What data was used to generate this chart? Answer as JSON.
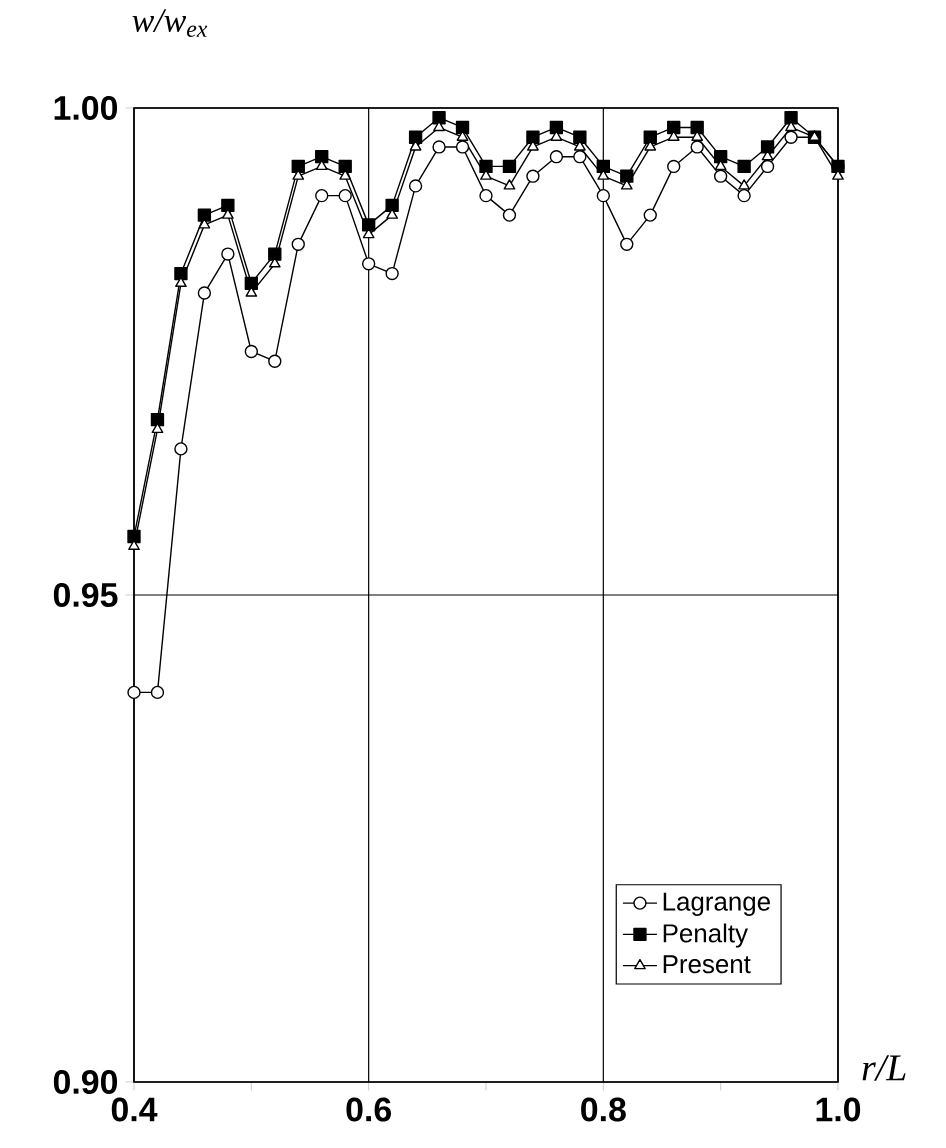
{
  "chart_data": {
    "type": "line",
    "xlabel": "r/L",
    "ylabel": "w/w$_{ex}$",
    "x": [
      0.4,
      0.42,
      0.44,
      0.46,
      0.48,
      0.5,
      0.52,
      0.54,
      0.56,
      0.58,
      0.6,
      0.62,
      0.64,
      0.66,
      0.68,
      0.7,
      0.72,
      0.74,
      0.76,
      0.78,
      0.8,
      0.82,
      0.84,
      0.86,
      0.88,
      0.9,
      0.92,
      0.94,
      0.96,
      0.98,
      1.0
    ],
    "series": [
      {
        "name": "Lagrange",
        "color": "#000000",
        "marker": "circle",
        "values": [
          0.94,
          0.94,
          0.965,
          0.981,
          0.985,
          0.975,
          0.974,
          0.986,
          0.991,
          0.991,
          0.984,
          0.983,
          0.992,
          0.996,
          0.996,
          0.991,
          0.989,
          0.993,
          0.995,
          0.995,
          0.991,
          0.986,
          0.989,
          0.994,
          0.996,
          0.993,
          0.991,
          0.994,
          0.997,
          0.997,
          0.994
        ]
      },
      {
        "name": "Penalty",
        "color": "#000000",
        "marker": "square",
        "values": [
          0.956,
          0.968,
          0.983,
          0.989,
          0.99,
          0.982,
          0.985,
          0.994,
          0.995,
          0.994,
          0.988,
          0.99,
          0.997,
          0.999,
          0.998,
          0.994,
          0.994,
          0.997,
          0.998,
          0.997,
          0.994,
          0.993,
          0.997,
          0.998,
          0.998,
          0.995,
          0.994,
          0.996,
          0.999,
          0.997,
          0.994
        ]
      },
      {
        "name": "Present",
        "color": "#000000",
        "marker": "triangle",
        "values": [
          0.955,
          0.967,
          0.982,
          0.988,
          0.989,
          0.981,
          0.984,
          0.993,
          0.994,
          0.993,
          0.987,
          0.989,
          0.996,
          0.998,
          0.997,
          0.993,
          0.992,
          0.996,
          0.997,
          0.996,
          0.993,
          0.992,
          0.996,
          0.997,
          0.997,
          0.994,
          0.992,
          0.995,
          0.998,
          0.997,
          0.993
        ]
      }
    ],
    "xlim": [
      0.4,
      1.0
    ],
    "ylim": [
      0.9,
      1.0
    ],
    "xticks": [
      0.4,
      {
        "value": 0.5,
        "label": null
      },
      0.6,
      {
        "value": 0.7,
        "label": null
      },
      0.8,
      {
        "value": 0.9,
        "label": null
      },
      {
        "value": 1.0,
        "label": "1.0"
      }
    ],
    "yticks": [
      {
        "value": 0.9,
        "label": "0.90"
      },
      0.95,
      {
        "value": 1.0,
        "label": "1.00"
      }
    ],
    "grid": true,
    "legend": "bottom right",
    "line_style": "solid"
  }
}
